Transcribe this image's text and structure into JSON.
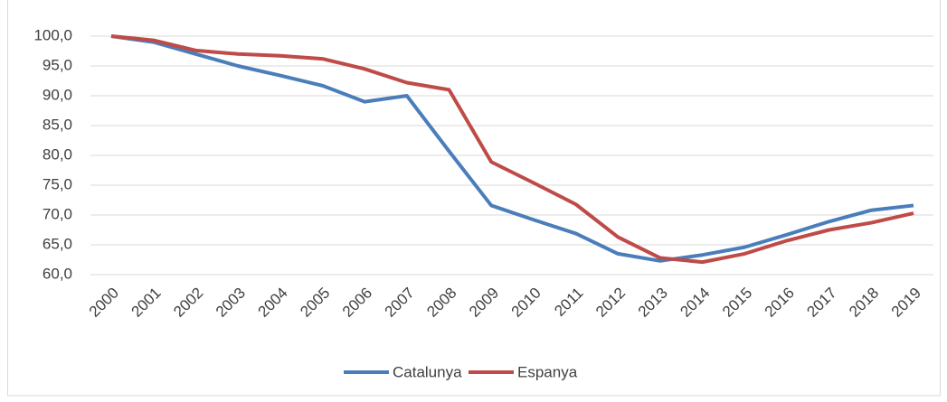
{
  "chart_data": {
    "type": "line",
    "categories": [
      "2000",
      "2001",
      "2002",
      "2003",
      "2004",
      "2005",
      "2006",
      "2007",
      "2008",
      "2009",
      "2010",
      "2011",
      "2012",
      "2013",
      "2014",
      "2015",
      "2016",
      "2017",
      "2018",
      "2019"
    ],
    "series": [
      {
        "name": "Catalunya",
        "color": "#4a7ebb",
        "values": [
          100,
          99.0,
          97.0,
          95.0,
          93.4,
          91.7,
          89.0,
          90.0,
          80.7,
          71.6,
          69.2,
          66.9,
          63.5,
          62.3,
          63.3,
          64.6,
          66.7,
          68.9,
          70.8,
          71.6
        ]
      },
      {
        "name": "Espanya",
        "color": "#be4b48",
        "values": [
          100,
          99.3,
          97.6,
          97.0,
          96.7,
          96.2,
          94.5,
          92.2,
          91.0,
          78.9,
          75.4,
          71.8,
          66.3,
          62.8,
          62.1,
          63.5,
          65.7,
          67.5,
          68.7,
          70.3
        ]
      }
    ],
    "ylim": [
      60,
      100
    ],
    "yticks": [
      {
        "value": 60,
        "label": "60,0"
      },
      {
        "value": 65,
        "label": "65,0"
      },
      {
        "value": 70,
        "label": "70,0"
      },
      {
        "value": 75,
        "label": "75,0"
      },
      {
        "value": 80,
        "label": "80,0"
      },
      {
        "value": 85,
        "label": "85,0"
      },
      {
        "value": 90,
        "label": "90,0"
      },
      {
        "value": 95,
        "label": "95,0"
      },
      {
        "value": 100,
        "label": "100,0"
      }
    ],
    "grid": true,
    "legend": "bottom"
  }
}
